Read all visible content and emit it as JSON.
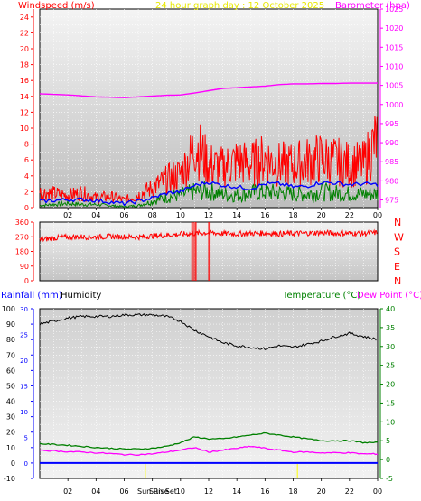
{
  "header": {
    "windspeed_label": "Windspeed (m/s)",
    "graph_title": "24 hour graph day : 12 October 2025",
    "barometer_label": "Barometer (hpa)"
  },
  "middle": {
    "direction_labels": [
      "N",
      "W",
      "S",
      "E",
      "N"
    ]
  },
  "bottom": {
    "rainfall_label": "Rainfall (mm)",
    "humidity_label": "Humidity",
    "temperature_label": "Temperature (°C)",
    "dewpoint_label": "Dew Point (°C)",
    "sun_rise_label": "Sun Rise",
    "sun_set_label": "Sun Set"
  },
  "colors": {
    "windspeed": "#ff0000",
    "wind_avg": "#0000ff",
    "wind_low": "#008000",
    "barometer": "#ff00ff",
    "direction": "#ff0000",
    "humidity": "#000000",
    "temperature": "#008000",
    "dewpoint": "#ff00ff",
    "rainfall": "#0000ff",
    "sun_marker": "#ffff00",
    "axis_left": "#ff0000",
    "axis_right": "#ff00ff",
    "axis_green": "#008000",
    "axis_blue": "#0000ff"
  },
  "chart_data": [
    {
      "type": "line",
      "name": "wind-barometer",
      "x_ticks": [
        "02",
        "04",
        "06",
        "08",
        "10",
        "12",
        "14",
        "16",
        "18",
        "20",
        "22",
        "00"
      ],
      "xlim": [
        0,
        24
      ],
      "ylim_left": [
        0,
        25
      ],
      "y_ticks_left": [
        0,
        2,
        4,
        6,
        8,
        10,
        12,
        14,
        16,
        18,
        20,
        22,
        24
      ],
      "ylim_right": [
        973,
        1025
      ],
      "y_ticks_right": [
        975,
        980,
        985,
        990,
        995,
        1000,
        1005,
        1010,
        1015,
        1020,
        1025
      ],
      "series": [
        {
          "key": "gust",
          "x": [
            0,
            1,
            2,
            3,
            4,
            5,
            6,
            7,
            8,
            9,
            10,
            10.8,
            11,
            12,
            13,
            14,
            15,
            16,
            17,
            18,
            19,
            20,
            21,
            22,
            23,
            23.9
          ],
          "values": [
            2.5,
            2.3,
            2.0,
            2.4,
            1.6,
            1.8,
            1.2,
            2.0,
            3.2,
            4.5,
            5.5,
            8.5,
            10.5,
            7.0,
            6.5,
            7.5,
            7.0,
            8.0,
            7.0,
            7.0,
            7.5,
            8.0,
            7.5,
            7.0,
            7.0,
            11.0
          ]
        },
        {
          "key": "average",
          "x": [
            0,
            1,
            2,
            3,
            4,
            5,
            6,
            7,
            8,
            9,
            10,
            11,
            12,
            13,
            14,
            15,
            16,
            17,
            18,
            19,
            20,
            21,
            22,
            23,
            24
          ],
          "values": [
            0.8,
            0.9,
            1.0,
            1.0,
            0.9,
            0.7,
            0.5,
            0.8,
            1.2,
            1.8,
            2.0,
            2.8,
            3.2,
            2.8,
            2.6,
            2.4,
            3.0,
            3.0,
            2.6,
            2.7,
            3.2,
            3.1,
            2.9,
            3.0,
            2.9
          ]
        },
        {
          "key": "low",
          "x": [
            0,
            1,
            2,
            3,
            4,
            5,
            6,
            7,
            8,
            9,
            10,
            11,
            12,
            13,
            14,
            15,
            16,
            17,
            18,
            19,
            20,
            21,
            22,
            23,
            24
          ],
          "values": [
            0.2,
            0.3,
            0.4,
            0.3,
            0.3,
            0.2,
            0.1,
            0.2,
            0.6,
            1.0,
            1.2,
            1.5,
            1.6,
            1.3,
            1.2,
            1.4,
            1.5,
            1.4,
            1.3,
            1.3,
            1.5,
            1.4,
            1.3,
            1.3,
            1.3
          ]
        },
        {
          "key": "barometer",
          "x": [
            0,
            2,
            4,
            6,
            7,
            8,
            9,
            10,
            11,
            12,
            13,
            14,
            15,
            16,
            17,
            18,
            19,
            20,
            21,
            22,
            23,
            24
          ],
          "values": [
            1002.8,
            1002.5,
            1002.0,
            1001.8,
            1002.0,
            1002.2,
            1002.4,
            1002.5,
            1003.0,
            1003.6,
            1004.2,
            1004.4,
            1004.6,
            1004.8,
            1005.2,
            1005.4,
            1005.4,
            1005.5,
            1005.5,
            1005.6,
            1005.6,
            1005.6
          ]
        }
      ]
    },
    {
      "type": "line",
      "name": "wind-direction",
      "ylim": [
        0,
        360
      ],
      "y_ticks": [
        0,
        90,
        180,
        270,
        360
      ],
      "x": [
        0,
        1,
        2,
        3,
        4,
        5,
        6,
        7,
        8,
        9,
        10,
        11,
        12,
        13,
        14,
        15,
        16,
        17,
        18,
        19,
        20,
        21,
        22,
        23,
        24
      ],
      "values": [
        250,
        262,
        268,
        270,
        268,
        272,
        270,
        268,
        275,
        280,
        285,
        290,
        295,
        290,
        288,
        290,
        292,
        288,
        290,
        292,
        295,
        290,
        292,
        290,
        295
      ],
      "dips": [
        {
          "x0": 10.8,
          "x1": 11.1,
          "low": 0
        },
        {
          "x0": 12.0,
          "x1": 12.1,
          "low": 0
        }
      ]
    },
    {
      "type": "line",
      "name": "humidity-temperature",
      "x_ticks": [
        "02",
        "04",
        "06",
        "08",
        "10",
        "12",
        "14",
        "16",
        "18",
        "20",
        "22",
        "00"
      ],
      "xlim": [
        0,
        24
      ],
      "ylim_left": [
        -10,
        100
      ],
      "y_ticks_left": [
        -10,
        0,
        10,
        20,
        30,
        40,
        50,
        60,
        70,
        80,
        90,
        100
      ],
      "y_ticks_rain": [
        0,
        5,
        10,
        15,
        20,
        25,
        30
      ],
      "ylim_right": [
        -5,
        40
      ],
      "y_ticks_right": [
        -5,
        0,
        5,
        10,
        15,
        20,
        25,
        30,
        35,
        40
      ],
      "sun_rise_hour": 7.5,
      "sun_set_hour": 18.3,
      "series": [
        {
          "key": "humidity",
          "x": [
            0,
            1,
            2,
            3,
            4,
            5,
            6,
            7,
            8,
            9,
            10,
            11,
            12,
            13,
            14,
            15,
            16,
            17,
            18,
            19,
            20,
            21,
            22,
            23,
            24
          ],
          "values": [
            90,
            92,
            94,
            95,
            95,
            95,
            96,
            96,
            96,
            95,
            92,
            86,
            82,
            78,
            76,
            75,
            74,
            76,
            75,
            77,
            79,
            82,
            84,
            82,
            80
          ]
        },
        {
          "key": "temperature",
          "x": [
            0,
            1,
            2,
            3,
            4,
            5,
            6,
            7,
            8,
            9,
            10,
            11,
            12,
            13,
            14,
            15,
            16,
            17,
            18,
            19,
            20,
            21,
            22,
            23,
            24
          ],
          "values": [
            4.2,
            4.0,
            3.8,
            3.5,
            3.2,
            3.0,
            2.8,
            2.8,
            3.0,
            3.5,
            4.5,
            6.0,
            5.5,
            5.5,
            6.0,
            6.5,
            7.0,
            6.5,
            6.0,
            5.5,
            5.0,
            5.0,
            5.0,
            4.5,
            4.5
          ]
        },
        {
          "key": "dewpoint",
          "x": [
            0,
            1,
            2,
            3,
            4,
            5,
            6,
            7,
            8,
            9,
            10,
            11,
            12,
            13,
            14,
            15,
            16,
            17,
            18,
            19,
            20,
            21,
            22,
            23,
            24
          ],
          "values": [
            2.5,
            2.3,
            2.1,
            2.0,
            1.8,
            1.6,
            1.3,
            1.3,
            1.5,
            2.0,
            2.5,
            3.2,
            2.0,
            2.5,
            3.0,
            3.5,
            3.0,
            2.5,
            2.0,
            2.0,
            1.8,
            1.8,
            1.8,
            1.5,
            1.5
          ]
        },
        {
          "key": "rainfall",
          "x": [
            0,
            24
          ],
          "values": [
            0,
            0
          ]
        }
      ]
    }
  ]
}
